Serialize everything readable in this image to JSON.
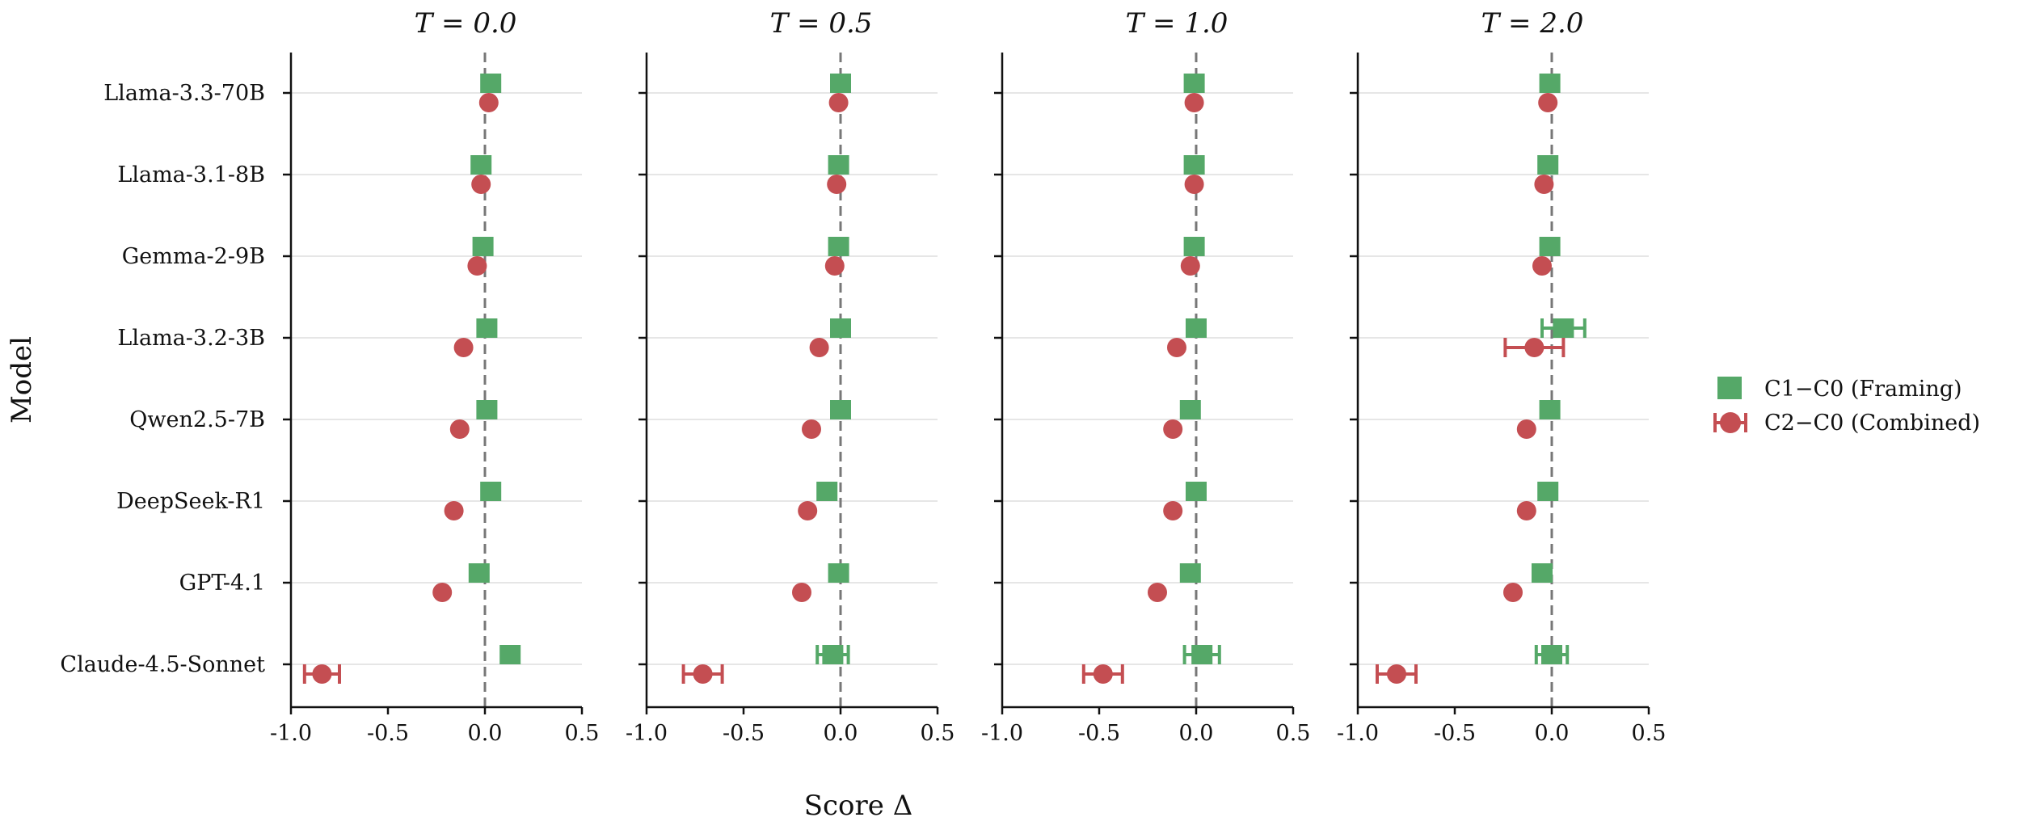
{
  "chart_data": {
    "type": "scatter",
    "ylabel": "Model",
    "xlabel": "Score Δ",
    "xlim": [
      -1.0,
      0.5
    ],
    "x_ticks": [
      -1.0,
      -0.5,
      0.0,
      0.5
    ],
    "x_tick_labels": [
      "-1.0",
      "-0.5",
      "0.0",
      "0.5"
    ],
    "reference_line_x": 0.0,
    "grid": "horizontal",
    "legend_position": "right",
    "models": [
      "Llama-3.3-70B",
      "Llama-3.1-8B",
      "Gemma-2-9B",
      "Llama-3.2-3B",
      "Qwen2.5-7B",
      "DeepSeek-R1",
      "GPT-4.1",
      "Claude-4.5-Sonnet"
    ],
    "series_styles": [
      {
        "key": "framing",
        "name": "C1−C0 (Framing)",
        "marker": "square",
        "color": "#55a868"
      },
      {
        "key": "combined",
        "name": "C2−C0 (Combined)",
        "marker": "circle",
        "color": "#c44e52"
      }
    ],
    "panels": [
      {
        "title": "T = 0.0",
        "framing": {
          "values": [
            0.03,
            -0.02,
            -0.01,
            0.01,
            0.01,
            0.03,
            -0.03,
            0.13
          ],
          "errors": [
            0,
            0,
            0,
            0,
            0,
            0,
            0,
            0
          ]
        },
        "combined": {
          "values": [
            0.02,
            -0.02,
            -0.04,
            -0.11,
            -0.13,
            -0.16,
            -0.22,
            -0.84
          ],
          "errors": [
            0,
            0,
            0,
            0,
            0,
            0,
            0,
            0.09
          ]
        }
      },
      {
        "title": "T = 0.5",
        "framing": {
          "values": [
            0.0,
            -0.01,
            -0.01,
            0.0,
            0.0,
            -0.07,
            -0.01,
            -0.04
          ],
          "errors": [
            0,
            0,
            0,
            0,
            0,
            0,
            0,
            0.08
          ]
        },
        "combined": {
          "values": [
            -0.01,
            -0.02,
            -0.03,
            -0.11,
            -0.15,
            -0.17,
            -0.2,
            -0.71
          ],
          "errors": [
            0,
            0,
            0,
            0,
            0,
            0,
            0,
            0.1
          ]
        }
      },
      {
        "title": "T = 1.0",
        "framing": {
          "values": [
            -0.01,
            -0.01,
            -0.01,
            0.0,
            -0.03,
            0.0,
            -0.03,
            0.03
          ],
          "errors": [
            0,
            0,
            0,
            0,
            0,
            0,
            0,
            0.09
          ]
        },
        "combined": {
          "values": [
            -0.01,
            -0.01,
            -0.03,
            -0.1,
            -0.12,
            -0.12,
            -0.2,
            -0.48
          ],
          "errors": [
            0,
            0,
            0,
            0,
            0,
            0,
            0,
            0.1
          ]
        }
      },
      {
        "title": "T = 2.0",
        "framing": {
          "values": [
            -0.01,
            -0.02,
            -0.01,
            0.06,
            -0.01,
            -0.02,
            -0.05,
            0.0
          ],
          "errors": [
            0,
            0,
            0,
            0.11,
            0,
            0,
            0,
            0.08
          ]
        },
        "combined": {
          "values": [
            -0.02,
            -0.04,
            -0.05,
            -0.09,
            -0.13,
            -0.13,
            -0.2,
            -0.8
          ],
          "errors": [
            0,
            0,
            0,
            0.15,
            0,
            0,
            0,
            0.1
          ]
        }
      }
    ]
  }
}
